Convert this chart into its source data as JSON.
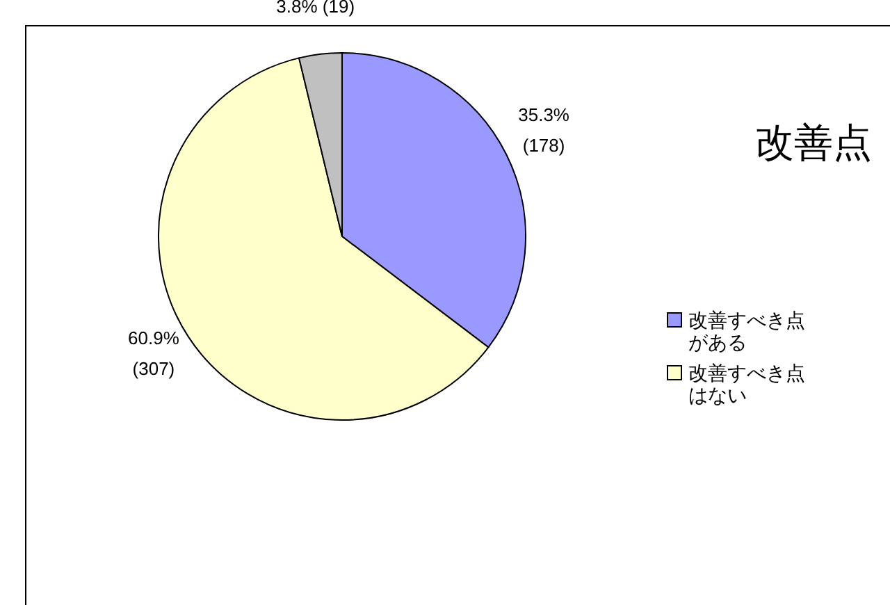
{
  "chart_data": {
    "type": "pie",
    "title": "改善点",
    "categories": [
      "改善すべき点がある",
      "改善すべき点はない",
      null
    ],
    "values": [
      178,
      307,
      19
    ],
    "colors": [
      "#9999ff",
      "#ffffcc",
      "#c0c0c0"
    ],
    "value_labels": [
      "35.3%\n(178)",
      "60.9%\n(307)",
      "3.8% (19)"
    ],
    "legend": "right"
  }
}
